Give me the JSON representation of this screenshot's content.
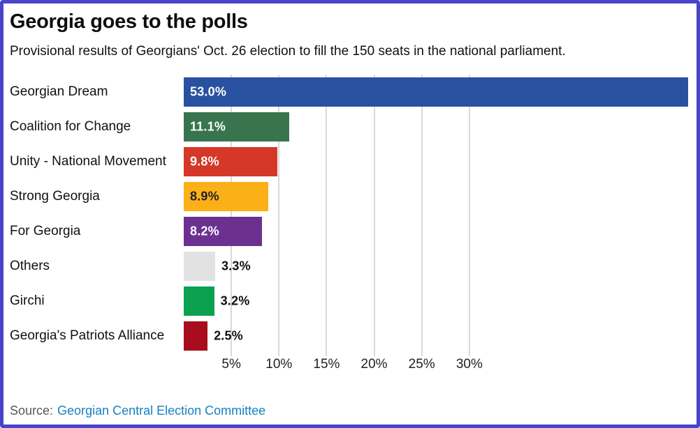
{
  "frame": {
    "border_color": "#4845cb"
  },
  "header": {
    "title": "Georgia goes to the polls",
    "subtitle": "Provisional results of Georgians' Oct. 26 election to fill the 150 seats in the national parliament."
  },
  "chart_data": {
    "type": "bar",
    "orientation": "horizontal",
    "title": "Georgia goes to the polls",
    "categories": [
      "Georgian Dream",
      "Coalition for Change",
      "Unity - National Movement",
      "Strong Georgia",
      "For Georgia",
      "Others",
      "Girchi",
      "Georgia's Patriots Alliance"
    ],
    "values": [
      53.0,
      11.1,
      9.8,
      8.9,
      8.2,
      3.3,
      3.2,
      2.5
    ],
    "value_labels": [
      "53.0%",
      "11.1%",
      "9.8%",
      "8.9%",
      "8.2%",
      "3.3%",
      "3.2%",
      "2.5%"
    ],
    "bar_colors": [
      "#2a519f",
      "#38754e",
      "#d53829",
      "#fbb018",
      "#6c3190",
      "#e2e2e2",
      "#0ca150",
      "#a80d1e"
    ],
    "value_label_inside": [
      true,
      true,
      true,
      true,
      true,
      false,
      false,
      false
    ],
    "value_label_colors": [
      "#ffffff",
      "#ffffff",
      "#ffffff",
      "#222222",
      "#ffffff",
      "#111111",
      "#111111",
      "#111111"
    ],
    "xlim": [
      0,
      53.2
    ],
    "x_ticks": [
      {
        "value": 5,
        "label": "5%"
      },
      {
        "value": 10,
        "label": "10%"
      },
      {
        "value": 15,
        "label": "15%"
      },
      {
        "value": 20,
        "label": "20%"
      },
      {
        "value": 25,
        "label": "25%"
      },
      {
        "value": 30,
        "label": "30%"
      }
    ],
    "grid": true,
    "gridline_color": "#d9d9d9",
    "legend": "none"
  },
  "footer": {
    "source_label": "Source:",
    "source_link_text": "Georgian Central Election Committee"
  }
}
